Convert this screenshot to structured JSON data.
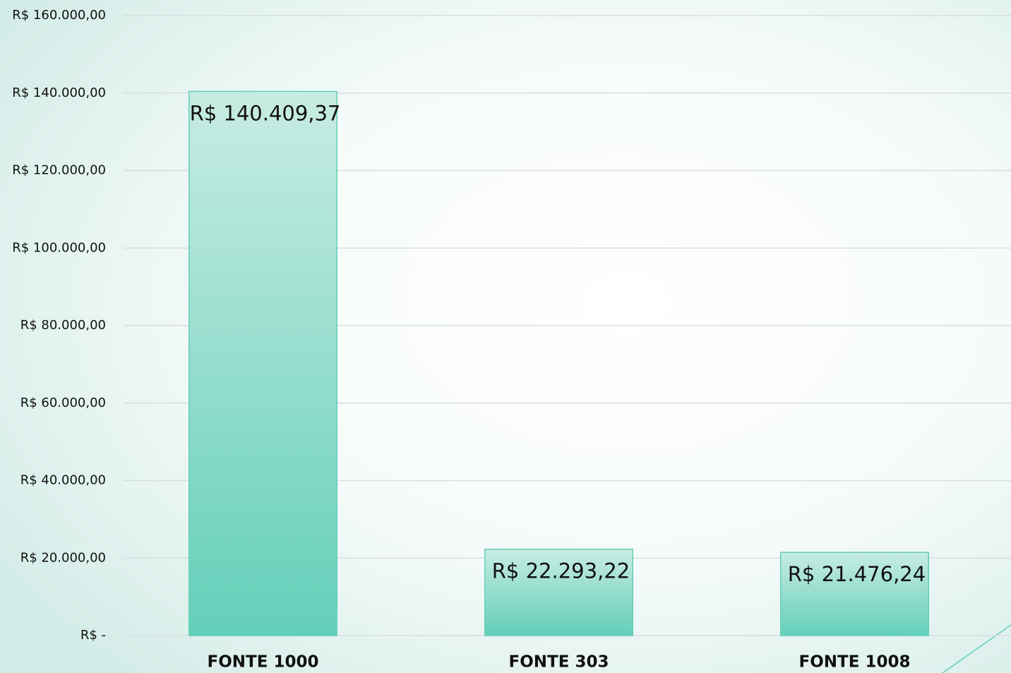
{
  "chart_data": {
    "type": "bar",
    "categories": [
      "FONTE 1000",
      "FONTE 303",
      "FONTE 1008"
    ],
    "values": [
      140409.37,
      22293.22,
      21476.24
    ],
    "value_labels": [
      "R$ 140.409,37",
      "R$ 22.293,22",
      "R$ 21.476,24"
    ],
    "color": "#63cfb9",
    "ylim": [
      0,
      160000
    ],
    "yticks": [
      {
        "value": 0,
        "label": "R$ -"
      },
      {
        "value": 20000,
        "label": "R$ 20.000,00"
      },
      {
        "value": 40000,
        "label": "R$ 40.000,00"
      },
      {
        "value": 60000,
        "label": "R$ 60.000,00"
      },
      {
        "value": 80000,
        "label": "R$ 80.000,00"
      },
      {
        "value": 100000,
        "label": "R$ 100.000,00"
      },
      {
        "value": 120000,
        "label": "R$ 120.000,00"
      },
      {
        "value": 140000,
        "label": "R$ 140.000,00"
      },
      {
        "value": 160000,
        "label": "R$ 160.000,00"
      }
    ],
    "grid": true
  }
}
